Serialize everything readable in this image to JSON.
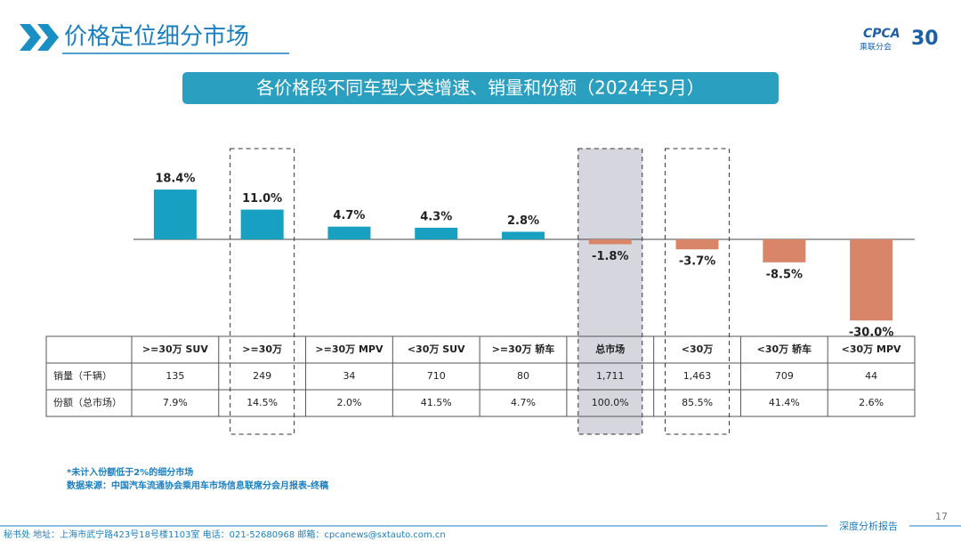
{
  "header": {
    "title": "价格定位细分市场",
    "logo": "CPCA",
    "logo_sub": "乘联分会",
    "anniversary": "30"
  },
  "chart_data": {
    "type": "bar",
    "title": "各价格段不同车型大类增速、销量和份额（2024年5月）",
    "categories": [
      ">=30万 SUV",
      ">=30万",
      ">=30万 MPV",
      "<30万 SUV",
      ">=30万 轿车",
      "总市场",
      "<30万",
      "<30万 轿车",
      "<30万 MPV"
    ],
    "values": [
      18.4,
      11.0,
      4.7,
      4.3,
      2.8,
      -1.8,
      -3.7,
      -8.5,
      -30.0
    ],
    "value_labels": [
      "18.4%",
      "11.0%",
      "4.7%",
      "4.3%",
      "2.8%",
      "-1.8%",
      "-3.7%",
      "-8.5%",
      "-30.0%"
    ],
    "positive_color": "#17a0c2",
    "negative_color": "#d9856a"
  },
  "table": {
    "rows": [
      {
        "label": "销量（千辆）",
        "cells": [
          "135",
          "249",
          "34",
          "710",
          "80",
          "1,711",
          "1,463",
          "709",
          "44"
        ]
      },
      {
        "label": "份额（总市场）",
        "cells": [
          "7.9%",
          "14.5%",
          "2.0%",
          "41.5%",
          "4.7%",
          "100.0%",
          "85.5%",
          "41.4%",
          "2.6%"
        ]
      }
    ]
  },
  "notes": [
    "*未计入份额低于2%的细分市场",
    "数据来源：中国汽车流通协会乘用车市场信息联席分会月报表-终稿"
  ],
  "footer": {
    "contact": "秘书处   地址：上海市武宁路423号18号楼1103室    电话：021-52680968     邮箱：cpcanews@sxtauto.com.cn",
    "page": "17",
    "tag": "深度分析报告"
  }
}
